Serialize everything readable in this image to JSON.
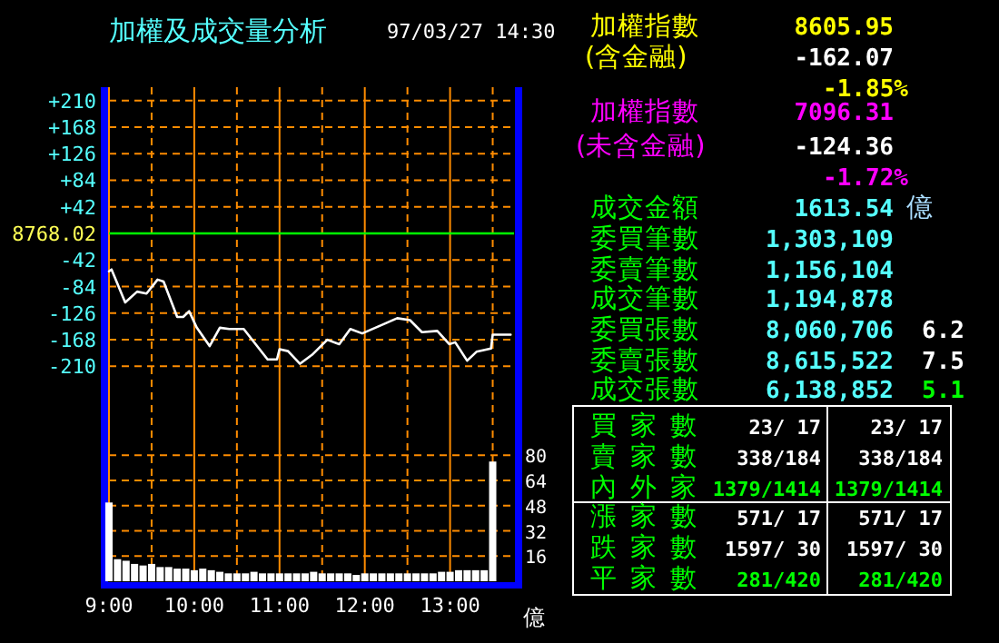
{
  "chart_data": [
    {
      "type": "line",
      "title": "加權及成交量分析",
      "subtitle": "97/03/27 14:30",
      "x": [
        9.0,
        9.03,
        9.19,
        9.33,
        9.44,
        9.57,
        9.64,
        9.8,
        9.87,
        9.94,
        10.03,
        10.18,
        10.3,
        10.41,
        10.58,
        10.72,
        10.86,
        10.97,
        11.0,
        11.1,
        11.24,
        11.38,
        11.56,
        11.7,
        11.83,
        11.97,
        12.21,
        12.38,
        12.53,
        12.67,
        12.85,
        12.99,
        13.06,
        13.2,
        13.31,
        13.48,
        13.5,
        13.71
      ],
      "series": [
        {
          "color": "#ffffff",
          "values": [
            -60,
            -57,
            -109,
            -92,
            -95,
            -73,
            -76,
            -132,
            -132,
            -123,
            -149,
            -178,
            -149,
            -151,
            -151,
            -175,
            -199,
            -199,
            -183,
            -186,
            -206,
            -192,
            -168,
            -175,
            -151,
            -158,
            -144,
            -134,
            -137,
            -156,
            -154,
            -175,
            -172,
            -201,
            -187,
            -182,
            -160,
            -160
          ]
        }
      ],
      "xlim": [
        9,
        13.75
      ],
      "xticks": [
        9,
        9.5,
        10,
        10.5,
        11,
        11.5,
        12,
        12.5,
        13,
        13.5
      ],
      "ylim": [
        -231,
        231
      ],
      "yticks": [
        {
          "value": 210,
          "label": "+210"
        },
        {
          "value": 168,
          "label": "+168"
        },
        {
          "value": 126,
          "label": "+126"
        },
        {
          "value": 84,
          "label": "+84"
        },
        {
          "value": 42,
          "label": "+42"
        },
        -42,
        -84,
        -126,
        -168,
        -210
      ],
      "ref_lines": [
        {
          "axis": "y",
          "value": 0,
          "color": "#00ff00"
        }
      ],
      "annotations": [
        "8768.02"
      ],
      "grid": true,
      "tick_labels": "y"
    },
    {
      "type": "bar",
      "x": [
        9.0,
        9.1,
        9.2,
        9.3,
        9.4,
        9.5,
        9.6,
        9.7,
        9.8,
        9.9,
        10.0,
        10.1,
        10.2,
        10.3,
        10.4,
        10.5,
        10.6,
        10.7,
        10.8,
        10.9,
        11.0,
        11.1,
        11.2,
        11.3,
        11.4,
        11.5,
        11.6,
        11.7,
        11.8,
        11.9,
        12.0,
        12.1,
        12.2,
        12.3,
        12.4,
        12.5,
        12.6,
        12.7,
        12.8,
        12.9,
        13.0,
        13.1,
        13.2,
        13.3,
        13.4,
        13.5
      ],
      "values": [
        50,
        14,
        13,
        11,
        10,
        11,
        9,
        9,
        8,
        8,
        7,
        8,
        7,
        6,
        5,
        5,
        5,
        6,
        5,
        5,
        5,
        5,
        5,
        5,
        6,
        5,
        5,
        5,
        5,
        4,
        5,
        5,
        5,
        5,
        5,
        5,
        5,
        5,
        5,
        6,
        6,
        7,
        7,
        7,
        7,
        76
      ],
      "color": "#ffffff",
      "ylabel": "億",
      "xlim": [
        9,
        13.75
      ],
      "xticks": [
        {
          "value": 9,
          "label": "9:00"
        },
        {
          "value": 9.5,
          "label": null
        },
        {
          "value": 10,
          "label": "10:00"
        },
        {
          "value": 10.5,
          "label": null
        },
        {
          "value": 11,
          "label": "11:00"
        },
        {
          "value": 11.5,
          "label": null
        },
        {
          "value": 12,
          "label": "12:00"
        },
        {
          "value": 12.5,
          "label": null
        },
        {
          "value": 13,
          "label": "13:00"
        },
        {
          "value": 13.5,
          "label": null
        }
      ],
      "ylim": [
        0,
        128
      ],
      "yticks": [
        16,
        32,
        48,
        64,
        80
      ],
      "grid": true
    },
    {
      "type": "other",
      "annotations": [
        "加權指數",
        "8605.95",
        "(含金融)",
        "-162.07",
        "-1.85%",
        "加權指數",
        "7096.31",
        "(未含金融)",
        "-124.36",
        "-1.72%",
        "成交金額",
        "1613.54",
        "億",
        "委買筆數",
        "1,303,109",
        "委賣筆數",
        "1,156,104",
        "成交筆數",
        "1,194,878",
        "委買張數",
        "8,060,706",
        "6.2",
        "委賣張數",
        "8,615,522",
        "7.5",
        "成交張數",
        "6,138,852",
        "5.1",
        "買家數",
        "23/ 17",
        "23/ 17",
        "賣家數",
        "338/184",
        "338/184",
        "內外家",
        "1379/1414",
        "1379/1414",
        "漲家數",
        "571/ 17",
        "571/ 17",
        "跌家數",
        "1597/ 30",
        "1597/ 30",
        "平家數",
        "281/420",
        "281/420"
      ]
    }
  ]
}
